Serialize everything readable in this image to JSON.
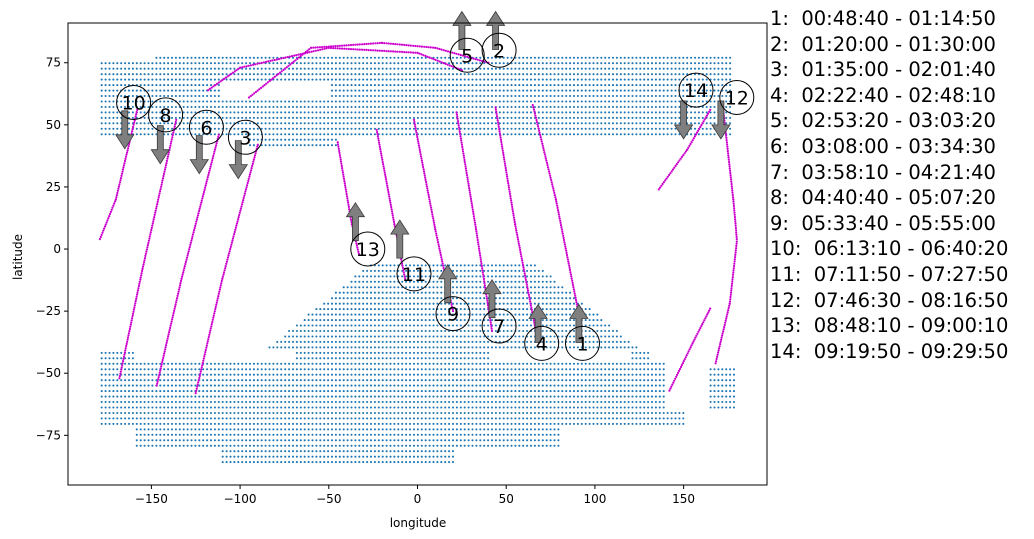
{
  "chart_data": {
    "type": "scatter",
    "xlabel": "longitude",
    "ylabel": "latitude",
    "xlim": [
      -197,
      197
    ],
    "ylim": [
      -95,
      91
    ],
    "xticks": [
      -150,
      -100,
      -50,
      0,
      50,
      100,
      150
    ],
    "yticks": [
      -75,
      -50,
      -25,
      0,
      25,
      50,
      75
    ],
    "xtick_labels": [
      "−150",
      "−100",
      "−50",
      "0",
      "50",
      "100",
      "150"
    ],
    "ytick_labels": [
      "−75",
      "−50",
      "−25",
      "0",
      "25",
      "50",
      "75"
    ],
    "grid": false,
    "colors": {
      "land_points": "#1f77b4",
      "tracks": "#cc00cc",
      "arrows": "#7f7f7f"
    },
    "land_points": {
      "marker": "small dot",
      "approximate_regions": [
        {
          "name": "north",
          "lon_range": [
            -178,
            178
          ],
          "lat_range": [
            40,
            78
          ]
        },
        {
          "name": "south",
          "lon_range": [
            -178,
            178
          ],
          "lat_range": [
            -88,
            -40
          ]
        },
        {
          "name": "central",
          "lon_range": [
            -85,
            125
          ],
          "lat_range": [
            -40,
            -5
          ]
        }
      ]
    },
    "orbits": [
      {
        "label": "1",
        "time_range": "00:48:40 - 01:14:50",
        "direction": "up",
        "label_at": [
          93,
          -38
        ],
        "arrow_at": [
          91,
          -30
        ],
        "track": [
          [
            65,
            58
          ],
          [
            78,
            20
          ],
          [
            92,
            -30
          ]
        ]
      },
      {
        "label": "2",
        "time_range": "01:20:00 - 01:30:00",
        "direction": "up",
        "label_at": [
          46,
          80
        ],
        "arrow_at": [
          44,
          88
        ],
        "track": [
          [
            -95,
            61
          ],
          [
            -60,
            81
          ],
          [
            -20,
            83
          ],
          [
            10,
            81
          ],
          [
            40,
            75
          ]
        ]
      },
      {
        "label": "3",
        "time_range": "01:35:00 - 02:01:40",
        "direction": "down",
        "label_at": [
          -97,
          45
        ],
        "arrow_at": [
          -101,
          36
        ],
        "track": [
          [
            -90,
            42
          ],
          [
            -110,
            -12
          ],
          [
            -125,
            -58
          ]
        ]
      },
      {
        "label": "4",
        "time_range": "02:22:40 - 02:48:10",
        "direction": "up",
        "label_at": [
          70,
          -38
        ],
        "arrow_at": [
          68,
          -30
        ],
        "track": [
          [
            44,
            57
          ],
          [
            55,
            10
          ],
          [
            67,
            -34
          ]
        ]
      },
      {
        "label": "5",
        "time_range": "02:53:20 - 03:03:20",
        "direction": "up",
        "label_at": [
          28,
          78
        ],
        "arrow_at": [
          25,
          88
        ],
        "track": [
          [
            -118,
            64
          ],
          [
            -100,
            73
          ],
          [
            -50,
            81
          ],
          [
            0,
            79
          ],
          [
            25,
            72
          ]
        ]
      },
      {
        "label": "6",
        "time_range": "03:08:00 - 03:34:30",
        "direction": "down",
        "label_at": [
          -119,
          49
        ],
        "arrow_at": [
          -123,
          38
        ],
        "track": [
          [
            -112,
            46
          ],
          [
            -133,
            -12
          ],
          [
            -147,
            -55
          ]
        ]
      },
      {
        "label": "7",
        "time_range": "03:58:10 - 04:21:40",
        "direction": "up",
        "label_at": [
          46,
          -31
        ],
        "arrow_at": [
          42,
          -20
        ],
        "track": [
          [
            22,
            55
          ],
          [
            33,
            8
          ],
          [
            42,
            -33
          ]
        ]
      },
      {
        "label": "8",
        "time_range": "04:40:40 - 05:07:20",
        "direction": "down",
        "label_at": [
          -142,
          54
        ],
        "arrow_at": [
          -145,
          42
        ],
        "track": [
          [
            -136,
            52
          ],
          [
            -155,
            -8
          ],
          [
            -168,
            -52
          ]
        ]
      },
      {
        "label": "9",
        "time_range": "05:33:40 - 05:55:00",
        "direction": "up",
        "label_at": [
          20,
          -26
        ],
        "arrow_at": [
          17,
          -14
        ],
        "track": [
          [
            -2,
            52
          ],
          [
            10,
            8
          ],
          [
            20,
            -25
          ]
        ]
      },
      {
        "label": "10",
        "time_range": "06:13:10 - 06:40:20",
        "direction": "down",
        "label_at": [
          -160,
          59
        ],
        "arrow_at": [
          -165,
          48
        ],
        "track": [
          [
            -158,
            56
          ],
          [
            -170,
            20
          ],
          [
            -179,
            4
          ]
        ]
      },
      {
        "label": "11",
        "time_range": "07:11:50 - 07:27:50",
        "direction": "up",
        "label_at": [
          -2,
          -10
        ],
        "arrow_at": [
          -10,
          4
        ],
        "track": [
          [
            -23,
            48
          ],
          [
            -13,
            10
          ],
          [
            -7,
            -12
          ]
        ]
      },
      {
        "label": "12",
        "time_range": "07:46:30 - 08:16:50",
        "direction": "down",
        "label_at": [
          180,
          61
        ],
        "arrow_at": [
          171,
          52
        ],
        "track": [
          [
            172,
            58
          ],
          [
            178,
            20
          ],
          [
            180,
            4
          ]
        ]
      },
      {
        "label": "13",
        "time_range": "08:48:10 - 09:00:10",
        "direction": "up",
        "label_at": [
          -28,
          0
        ],
        "arrow_at": [
          -35,
          11
        ],
        "track": [
          [
            -45,
            43
          ],
          [
            -37,
            10
          ],
          [
            -33,
            -2
          ]
        ]
      },
      {
        "label": "14",
        "time_range": "09:19:50 - 09:29:50",
        "direction": "down",
        "label_at": [
          157,
          64
        ],
        "arrow_at": [
          150,
          52
        ],
        "track": [
          [
            165,
            56
          ],
          [
            152,
            40
          ],
          [
            136,
            24
          ]
        ]
      }
    ],
    "extra_tracks": [
      [
        [
          165,
          -24
        ],
        [
          155,
          -38
        ],
        [
          142,
          -57
        ]
      ],
      [
        [
          180,
          3
        ],
        [
          176,
          -22
        ],
        [
          168,
          -46
        ]
      ]
    ]
  },
  "legend": [
    "1:  00:48:40 - 01:14:50",
    "2:  01:20:00 - 01:30:00",
    "3:  01:35:00 - 02:01:40",
    "4:  02:22:40 - 02:48:10",
    "5:  02:53:20 - 03:03:20",
    "6:  03:08:00 - 03:34:30",
    "7:  03:58:10 - 04:21:40",
    "8:  04:40:40 - 05:07:20",
    "9:  05:33:40 - 05:55:00",
    "10:  06:13:10 - 06:40:20",
    "11:  07:11:50 - 07:27:50",
    "12:  07:46:30 - 08:16:50",
    "13:  08:48:10 - 09:00:10",
    "14:  09:19:50 - 09:29:50"
  ]
}
